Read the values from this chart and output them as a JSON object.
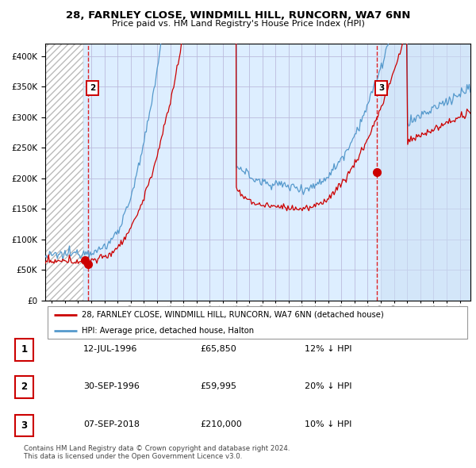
{
  "title1": "28, FARNLEY CLOSE, WINDMILL HILL, RUNCORN, WA7 6NN",
  "title2": "Price paid vs. HM Land Registry's House Price Index (HPI)",
  "legend_label_red": "28, FARNLEY CLOSE, WINDMILL HILL, RUNCORN, WA7 6NN (detached house)",
  "legend_label_blue": "HPI: Average price, detached house, Halton",
  "transactions": [
    {
      "num": 1,
      "date": "12-JUL-1996",
      "price": 65850,
      "pct": "12%",
      "dir": "↓"
    },
    {
      "num": 2,
      "date": "30-SEP-1996",
      "price": 59995,
      "pct": "20%",
      "dir": "↓"
    },
    {
      "num": 3,
      "date": "07-SEP-2018",
      "price": 210000,
      "pct": "10%",
      "dir": "↓"
    }
  ],
  "footnote1": "Contains HM Land Registry data © Crown copyright and database right 2024.",
  "footnote2": "This data is licensed under the Open Government Licence v3.0.",
  "red_color": "#cc0000",
  "blue_color": "#5599cc",
  "bg_plot_color": "#ddeeff",
  "vline_color": "#dd0000",
  "grid_color": "#bbbbdd",
  "ylim": [
    0,
    420000
  ],
  "yticks": [
    0,
    50000,
    100000,
    150000,
    200000,
    250000,
    300000,
    350000,
    400000
  ],
  "xmin": 1993.5,
  "xmax": 2025.8,
  "vline_year1": 1996.75,
  "vline_year2": 2018.69,
  "marker1_year": 1996.54,
  "marker1_price": 65850,
  "marker2_year": 1996.75,
  "marker2_price": 59995,
  "marker3_year": 2018.69,
  "marker3_price": 210000,
  "hatch_end": 1996.4,
  "future_start": 2019.0
}
